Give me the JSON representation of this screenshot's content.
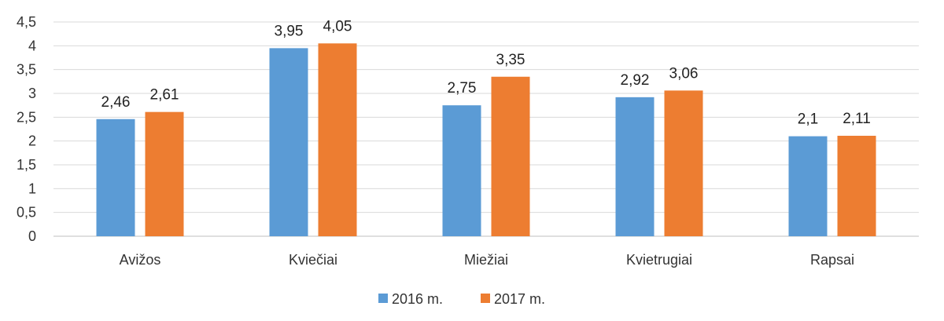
{
  "chart_data": {
    "type": "bar",
    "title": "",
    "xlabel": "",
    "ylabel": "",
    "categories": [
      "Avižos",
      "Kviečiai",
      "Miežiai",
      "Kvietrugiai",
      "Rapsai"
    ],
    "series": [
      {
        "name": "2016 m.",
        "color": "#5B9BD5",
        "values": [
          2.46,
          3.95,
          2.75,
          2.92,
          2.1
        ],
        "labels": [
          "2,46",
          "3,95",
          "2,75",
          "2,92",
          "2,1"
        ]
      },
      {
        "name": "2017 m.",
        "color": "#ED7D31",
        "values": [
          2.61,
          4.05,
          3.35,
          3.06,
          2.11
        ],
        "labels": [
          "2,61",
          "4,05",
          "3,35",
          "3,06",
          "2,11"
        ]
      }
    ],
    "ylim": [
      0,
      4.5
    ],
    "yticks": [
      0,
      0.5,
      1,
      1.5,
      2,
      2.5,
      3,
      3.5,
      4,
      4.5
    ],
    "ytick_labels": [
      "0",
      "0,5",
      "1",
      "1,5",
      "2",
      "2,5",
      "3",
      "3,5",
      "4",
      "4,5"
    ],
    "grid": true,
    "legend": "bottom-center"
  }
}
